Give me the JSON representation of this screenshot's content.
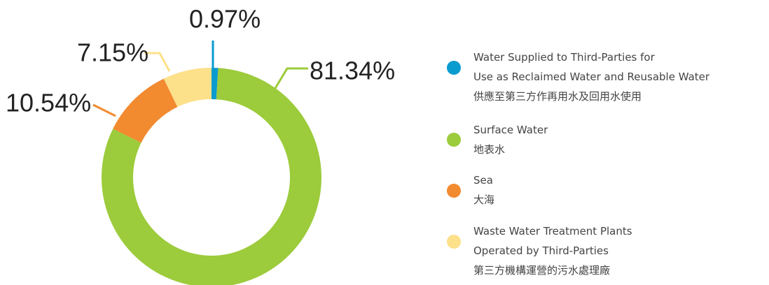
{
  "chart_data": {
    "type": "pie",
    "donut": true,
    "categories": [
      "Water Supplied to Third-Parties for\nUse as Reclaimed Water and Reusable Water\n供應至第三方作再用水及回用水使用",
      "Surface Water\n地表水",
      "Sea\n大海",
      "Waste Water Treatment Plants\nOperated by Third-Parties\n第三方機構運營的污水處理廠"
    ],
    "values": [
      0.97,
      81.34,
      10.54,
      7.15
    ],
    "value_labels": [
      "0.97%",
      "81.34%",
      "10.54%",
      "7.15%"
    ],
    "colors": [
      "#0a9bcf",
      "#9ccb3b",
      "#f28a30",
      "#fde08a"
    ]
  }
}
